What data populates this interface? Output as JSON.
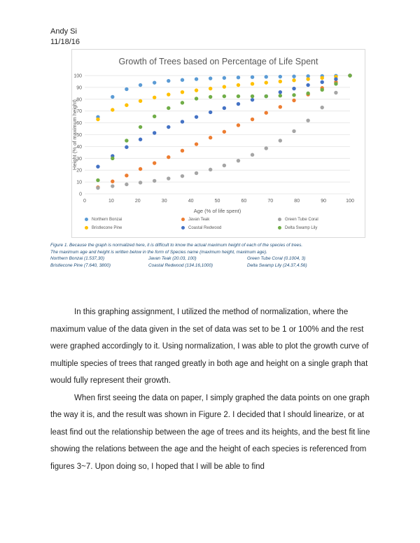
{
  "header": {
    "author": "Andy Si",
    "date": "11/18/16"
  },
  "chart_data": {
    "type": "scatter",
    "title": "Growth of Trees based on Percentage of Life Spent",
    "xlabel": "Age (% of life spent)",
    "ylabel": "Height (% of maximum height)",
    "xlim": [
      0,
      100
    ],
    "ylim": [
      0,
      100
    ],
    "xticks": [
      "0",
      "10",
      "20",
      "30",
      "40",
      "50",
      "60",
      "70",
      "80",
      "90",
      "100"
    ],
    "yticks": [
      "0",
      "10",
      "20",
      "30",
      "40",
      "50",
      "60",
      "70",
      "80",
      "90",
      "100"
    ],
    "grid": "horizontal",
    "legend_position": "bottom",
    "series": [
      {
        "name": "Northern Bonzai",
        "color": "#5b9bd5",
        "x": [
          5,
          10.5,
          15.8,
          21,
          26.3,
          31.6,
          36.8,
          42.1,
          47.4,
          52.6,
          57.9,
          63.2,
          68.4,
          73.7,
          78.9,
          84.2,
          89.5,
          94.7,
          100
        ],
        "y": [
          65,
          82,
          88.5,
          92,
          94,
          95.5,
          96.3,
          97,
          97.6,
          98,
          98.4,
          98.7,
          98.9,
          99.1,
          99.3,
          99.5,
          99.6,
          99.8,
          100
        ]
      },
      {
        "name": "Javan Teak",
        "color": "#ed7d31",
        "x": [
          5,
          10.5,
          15.8,
          21,
          26.3,
          31.6,
          36.8,
          42.1,
          47.4,
          52.6,
          57.9,
          63.2,
          68.4,
          73.7,
          78.9,
          84.2,
          89.5,
          94.7,
          100
        ],
        "y": [
          5.5,
          10.5,
          15.5,
          21,
          26,
          31,
          36.5,
          42,
          47.5,
          52.5,
          58,
          63,
          68.5,
          73.5,
          79,
          84,
          89.5,
          94.5,
          100
        ]
      },
      {
        "name": "Green Tube Coral",
        "color": "#a5a5a5",
        "x": [
          5,
          10.5,
          15.8,
          21,
          26.3,
          31.6,
          36.8,
          42.1,
          47.4,
          52.6,
          57.9,
          63.2,
          68.4,
          73.7,
          78.9,
          84.2,
          89.5,
          94.7,
          100
        ],
        "y": [
          5,
          6.5,
          8,
          9.5,
          11,
          13,
          15,
          17.5,
          20.5,
          24,
          28,
          33,
          38.5,
          45,
          53,
          62,
          73,
          85.5,
          100
        ]
      },
      {
        "name": "Bristlecone Pine",
        "color": "#ffc000",
        "x": [
          5,
          10.5,
          15.8,
          21,
          26.3,
          31.6,
          36.8,
          42.1,
          47.4,
          52.6,
          57.9,
          63.2,
          68.4,
          73.7,
          78.9,
          84.2,
          89.5,
          94.7,
          100
        ],
        "y": [
          63,
          71,
          75,
          78.5,
          81.5,
          84,
          86,
          87.5,
          89,
          90.5,
          92,
          93,
          94,
          95,
          96,
          97,
          98,
          99,
          100
        ]
      },
      {
        "name": "Coastal Redwood",
        "color": "#4472c4",
        "x": [
          5,
          10.5,
          15.8,
          21,
          26.3,
          31.6,
          36.8,
          42.1,
          47.4,
          52.6,
          57.9,
          63.2,
          68.4,
          73.7,
          78.9,
          84.2,
          89.5,
          94.7,
          100
        ],
        "y": [
          23,
          32,
          39.5,
          46,
          51.5,
          56.5,
          61,
          65,
          69,
          72.5,
          76,
          79.5,
          82.5,
          86,
          89,
          92,
          94.5,
          97,
          100
        ]
      },
      {
        "name": "Delta Swamp Lily",
        "color": "#70ad47",
        "x": [
          5,
          10.5,
          15.8,
          21,
          26.3,
          31.6,
          36.8,
          42.1,
          47.4,
          52.6,
          57.9,
          63.2,
          68.4,
          73.7,
          78.9,
          84.2,
          89.5,
          94.7,
          100
        ],
        "y": [
          11.5,
          30,
          45,
          56.5,
          65.5,
          72.5,
          77,
          80.5,
          82,
          82.5,
          82.5,
          82.5,
          82.5,
          83,
          83.5,
          85,
          88,
          93,
          100
        ]
      }
    ]
  },
  "caption": {
    "line1": "Figure 1. Because the graph is normalized here, it is difficult to know the actual maximum height of each of the species of trees.",
    "line2": "The maximum age and height is written below in the form of Species name (maximum height, maximum age).",
    "row1": [
      "Northern Bonzai (1.537,30)",
      "Javan Teak (20.03, 100)",
      "Green Tube Coral (0.1004, 3)"
    ],
    "row2": [
      "Bristlecone Pine (7.640, 3800)",
      "Coastal Redwood (134.16,1000)",
      "Delta Swamp Lily (24.37,4.56)"
    ]
  },
  "body": {
    "p1": "In this graphing assignment, I utilized the method of normalization, where the maximum value of the data given in the set of data was set to be 1 or 100% and the rest were graphed accordingly to it. Using normalization, I was able to plot the growth curve of multiple species of trees that ranged greatly in both age and height on a single graph that would fully represent their growth.",
    "p2": "When first seeing the data on paper, I simply graphed the data points on one graph the way it is, and the result was shown in Figure 2. I decided that I should linearize, or at least find out the relationship between the age of trees and its heights, and the best fit line showing the relations between the age and the height of each species is referenced from figures 3~7. Upon doing so, I hoped that I will be able to find"
  }
}
